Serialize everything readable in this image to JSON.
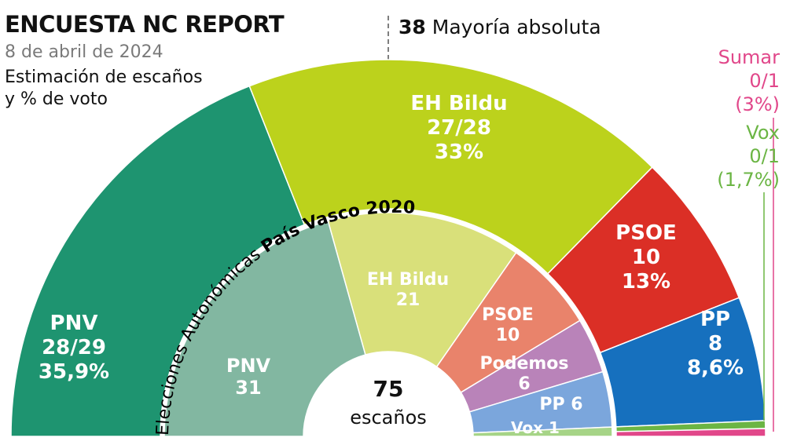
{
  "header": {
    "title": "ENCUESTA NC REPORT",
    "date": "8 de abril de 2024",
    "caption_line1": "Estimación de escaños",
    "caption_line2": "y % de voto"
  },
  "majority": {
    "number": "38",
    "label": "Mayoría absoluta"
  },
  "center": {
    "number": "75",
    "label": "escaños"
  },
  "inner_title_part1": "Elecciones Autonómicas ",
  "inner_title_part2": "País Vasco 2020",
  "chart_data": [
    {
      "type": "pie",
      "name": "Encuesta NC Report - estimación",
      "series": [
        {
          "party": "PNV",
          "seats": 28.5,
          "seats_label": "28/29",
          "vote_label": "35,9%",
          "color": "#1e9470"
        },
        {
          "party": "EH Bildu",
          "seats": 27.5,
          "seats_label": "27/28",
          "vote_label": "33%",
          "color": "#bcd21c"
        },
        {
          "party": "PSOE",
          "seats": 10,
          "seats_label": "10",
          "vote_label": "13%",
          "color": "#db2f26"
        },
        {
          "party": "PP",
          "seats": 8,
          "seats_label": "8",
          "vote_label": "8,6%",
          "color": "#1670be"
        },
        {
          "party": "Vox",
          "seats": 0.5,
          "seats_label": "0/1",
          "vote_label": "(1,7%)",
          "color": "#6bb544"
        },
        {
          "party": "Sumar",
          "seats": 0.5,
          "seats_label": "0/1",
          "vote_label": "(3%)",
          "color": "#e1478a"
        }
      ]
    },
    {
      "type": "pie",
      "name": "Elecciones Autonómicas País Vasco 2020",
      "series": [
        {
          "party": "PNV",
          "seats": 31,
          "color": "#82b7a1"
        },
        {
          "party": "EH Bildu",
          "seats": 21,
          "color": "#d9e07a"
        },
        {
          "party": "PSOE",
          "seats": 10,
          "color": "#e9836b"
        },
        {
          "party": "Podemos",
          "seats": 6,
          "color": "#b983b9"
        },
        {
          "party": "PP",
          "seats": 6,
          "color": "#7ba6dc"
        },
        {
          "party": "Vox",
          "seats": 1,
          "color": "#a6d487"
        }
      ]
    }
  ]
}
